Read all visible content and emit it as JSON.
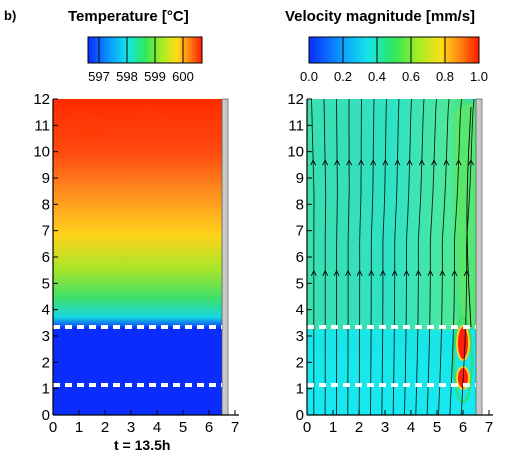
{
  "panel_letter": "b)",
  "time_label": "t = 13.5h",
  "panels": [
    {
      "id": "temperature",
      "title": "Temperature [°C]",
      "colorbar_ticks": [
        "597",
        "598",
        "599",
        "600"
      ],
      "colorbar_range": [
        596.5,
        600.5
      ],
      "x_ticks": [
        "0",
        "1",
        "2",
        "3",
        "4",
        "5",
        "6",
        "7"
      ],
      "y_ticks": [
        "0",
        "1",
        "2",
        "3",
        "4",
        "5",
        "6",
        "7",
        "8",
        "9",
        "10",
        "11",
        "12"
      ]
    },
    {
      "id": "velocity",
      "title": "Velocity magnitude [mm/s]",
      "colorbar_ticks": [
        "0.0",
        "0.2",
        "0.4",
        "0.6",
        "0.8",
        "1.0"
      ],
      "colorbar_range": [
        0.0,
        1.0
      ],
      "x_ticks": [
        "0",
        "1",
        "2",
        "3",
        "4",
        "5",
        "6",
        "7"
      ],
      "y_ticks": [
        "0",
        "1",
        "2",
        "3",
        "4",
        "5",
        "6",
        "7",
        "8",
        "9",
        "10",
        "11",
        "12"
      ]
    }
  ],
  "domain": {
    "x_range": [
      0,
      7
    ],
    "y_range": [
      0,
      12
    ],
    "fluid_width": 6.5
  },
  "dashed_lines_y": [
    1.1,
    3.35
  ],
  "colors": {
    "hot": "#ff2a00",
    "cold": "#0a2cff",
    "fluid_slow": "#19e6e8",
    "wall": "#c8c8c8",
    "dashed": "#ffffff"
  }
}
